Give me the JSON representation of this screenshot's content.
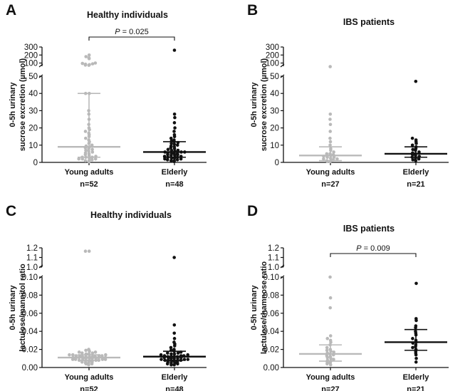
{
  "colors": {
    "young": "#b9b9b9",
    "elderly": "#111111",
    "axis": "#111111"
  },
  "chart_data": [
    {
      "type": "scatter",
      "letter": "A",
      "title": "Healthy individuals",
      "ylabel": [
        "0-5h urinary",
        "sucrose excretion  (µmol)"
      ],
      "y_low_ticks": [
        0,
        10,
        20,
        30,
        40,
        50
      ],
      "y_high_ticks": [
        100,
        200,
        300
      ],
      "y_low_range": [
        0,
        50
      ],
      "y_high_range": [
        60,
        300
      ],
      "pvalue": "P = 0.025",
      "groups": [
        {
          "name": "Young adults",
          "n": "n=52",
          "color": "young",
          "median": 9,
          "q1": 3,
          "q3": 40,
          "values": [
            180,
            200,
            165,
            155,
            100,
            95,
            90,
            85,
            80,
            75,
            72,
            40,
            40,
            30,
            28,
            25,
            22,
            20,
            19,
            18,
            17,
            16,
            15,
            14,
            13,
            12,
            11,
            10,
            9.5,
            9,
            8.5,
            8,
            7.5,
            7,
            6.5,
            6,
            5.5,
            5,
            4.5,
            4,
            3.5,
            3,
            3,
            2.5,
            2,
            2,
            1.5,
            1,
            1,
            0.5,
            2,
            3
          ]
        },
        {
          "name": "Elderly",
          "n": "n=48",
          "color": "elderly",
          "median": 6,
          "q1": 3,
          "q3": 12,
          "values": [
            260,
            28,
            26,
            23,
            20,
            18,
            16,
            15,
            14,
            13,
            12.5,
            12,
            11.5,
            11,
            10.5,
            10,
            9.5,
            9,
            8.5,
            8,
            7.5,
            7,
            7,
            6.5,
            6,
            6,
            5.5,
            5,
            5,
            4.5,
            4.5,
            4,
            4,
            3.5,
            3.5,
            3,
            3,
            2.5,
            2.5,
            2,
            2,
            1.5,
            1.5,
            1,
            1,
            0.5,
            6,
            5
          ]
        }
      ]
    },
    {
      "type": "scatter",
      "letter": "B",
      "title": "IBS patients",
      "ylabel": [
        "0-5h urinary",
        "sucrose excretion  (µmol)"
      ],
      "y_low_ticks": [
        0,
        10,
        20,
        30,
        40,
        50
      ],
      "y_high_ticks": [
        100,
        200,
        300
      ],
      "y_low_range": [
        0,
        50
      ],
      "y_high_range": [
        60,
        300
      ],
      "pvalue": "",
      "groups": [
        {
          "name": "Young adults",
          "n": "n=27",
          "color": "young",
          "median": 4,
          "q1": 1,
          "q3": 9,
          "values": [
            55,
            28,
            25,
            22,
            18,
            14,
            12,
            10,
            8,
            7,
            6,
            5,
            5,
            4.5,
            4,
            4,
            3.5,
            3,
            3,
            2.5,
            2,
            2,
            1.5,
            1,
            1,
            0.5,
            0.5
          ]
        },
        {
          "name": "Elderly",
          "n": "n=21",
          "color": "elderly",
          "median": 5,
          "q1": 3,
          "q3": 9,
          "values": [
            47,
            14,
            13,
            12,
            11,
            10,
            9,
            8,
            7.5,
            7,
            6,
            5.5,
            5,
            4.5,
            4,
            3.5,
            3,
            2.5,
            2,
            1.5,
            1
          ]
        }
      ]
    },
    {
      "type": "scatter",
      "letter": "C",
      "title": "Healthy individuals",
      "ylabel": [
        "0-5h urinary",
        "lactulose/mannitol ratio"
      ],
      "y_low_ticks": [
        0.0,
        0.02,
        0.04,
        0.06,
        0.08,
        0.1
      ],
      "y_high_ticks": [
        1.0,
        1.1,
        1.2
      ],
      "y_low_range": [
        0,
        0.1
      ],
      "y_high_range": [
        1.0,
        1.2
      ],
      "pvalue": "",
      "groups": [
        {
          "name": "Young adults",
          "n": "n=52",
          "color": "young",
          "median": 0.011,
          "q1": 0.008,
          "q3": 0.014,
          "values": [
            1.165,
            1.165,
            0.02,
            0.019,
            0.018,
            0.017,
            0.017,
            0.016,
            0.016,
            0.015,
            0.015,
            0.014,
            0.014,
            0.014,
            0.013,
            0.013,
            0.013,
            0.013,
            0.012,
            0.012,
            0.012,
            0.012,
            0.012,
            0.011,
            0.011,
            0.011,
            0.011,
            0.011,
            0.011,
            0.01,
            0.01,
            0.01,
            0.01,
            0.01,
            0.009,
            0.009,
            0.009,
            0.009,
            0.008,
            0.008,
            0.008,
            0.008,
            0.007,
            0.007,
            0.007,
            0.006,
            0.006,
            0.005,
            0.005,
            0.004,
            0.004,
            0.003
          ]
        },
        {
          "name": "Elderly",
          "n": "n=48",
          "color": "elderly",
          "median": 0.012,
          "q1": 0.008,
          "q3": 0.018,
          "values": [
            1.1,
            0.047,
            0.038,
            0.032,
            0.028,
            0.026,
            0.024,
            0.022,
            0.02,
            0.019,
            0.018,
            0.017,
            0.016,
            0.016,
            0.015,
            0.015,
            0.014,
            0.014,
            0.013,
            0.013,
            0.013,
            0.012,
            0.012,
            0.012,
            0.012,
            0.011,
            0.011,
            0.011,
            0.01,
            0.01,
            0.01,
            0.009,
            0.009,
            0.009,
            0.008,
            0.008,
            0.008,
            0.007,
            0.007,
            0.007,
            0.006,
            0.006,
            0.005,
            0.005,
            0.004,
            0.004,
            0.003,
            0.003
          ]
        }
      ]
    },
    {
      "type": "scatter",
      "letter": "D",
      "title": "IBS patients",
      "ylabel": [
        "0-5h urinary",
        "lactulose/rhamnose ratio"
      ],
      "y_low_ticks": [
        0.0,
        0.02,
        0.04,
        0.06,
        0.08,
        0.1
      ],
      "y_high_ticks": [
        1.0,
        1.1,
        1.2
      ],
      "y_low_range": [
        0,
        0.1
      ],
      "y_high_range": [
        1.0,
        1.2
      ],
      "pvalue": "P = 0.009",
      "groups": [
        {
          "name": "Young adults",
          "n": "n=27",
          "color": "young",
          "median": 0.015,
          "q1": 0.007,
          "q3": 0.025,
          "values": [
            0.1,
            0.077,
            0.066,
            0.035,
            0.032,
            0.03,
            0.028,
            0.025,
            0.022,
            0.02,
            0.019,
            0.018,
            0.017,
            0.016,
            0.015,
            0.014,
            0.013,
            0.012,
            0.011,
            0.01,
            0.009,
            0.008,
            0.007,
            0.006,
            0.005,
            0.004,
            0.003
          ]
        },
        {
          "name": "Elderly",
          "n": "n=21",
          "color": "elderly",
          "median": 0.028,
          "q1": 0.019,
          "q3": 0.042,
          "values": [
            0.093,
            0.054,
            0.052,
            0.046,
            0.044,
            0.04,
            0.038,
            0.036,
            0.032,
            0.03,
            0.028,
            0.027,
            0.025,
            0.023,
            0.022,
            0.02,
            0.018,
            0.016,
            0.014,
            0.01,
            0.006
          ]
        }
      ]
    }
  ]
}
